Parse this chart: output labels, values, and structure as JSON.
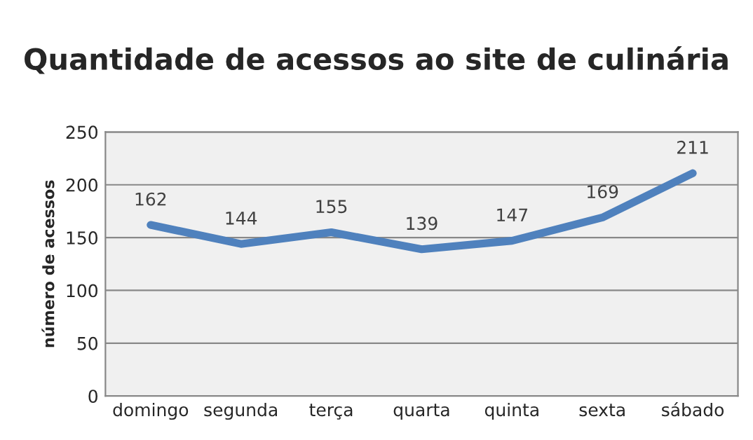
{
  "chart_data": {
    "type": "line",
    "title": "Quantidade de acessos ao site de culinária",
    "ylabel": "número de acessos",
    "categories": [
      "domingo",
      "segunda",
      "terça",
      "quarta",
      "quinta",
      "sexta",
      "sábado"
    ],
    "series": [
      {
        "color": "#4f81bd",
        "values": [
          162,
          144,
          155,
          139,
          147,
          169,
          211
        ]
      }
    ],
    "ylim": [
      0,
      250
    ],
    "yticks": [
      0,
      50,
      100,
      150,
      200,
      250
    ],
    "grid": "y",
    "data_labels": true,
    "legend": false,
    "marker": "none",
    "line_style": "solid"
  }
}
